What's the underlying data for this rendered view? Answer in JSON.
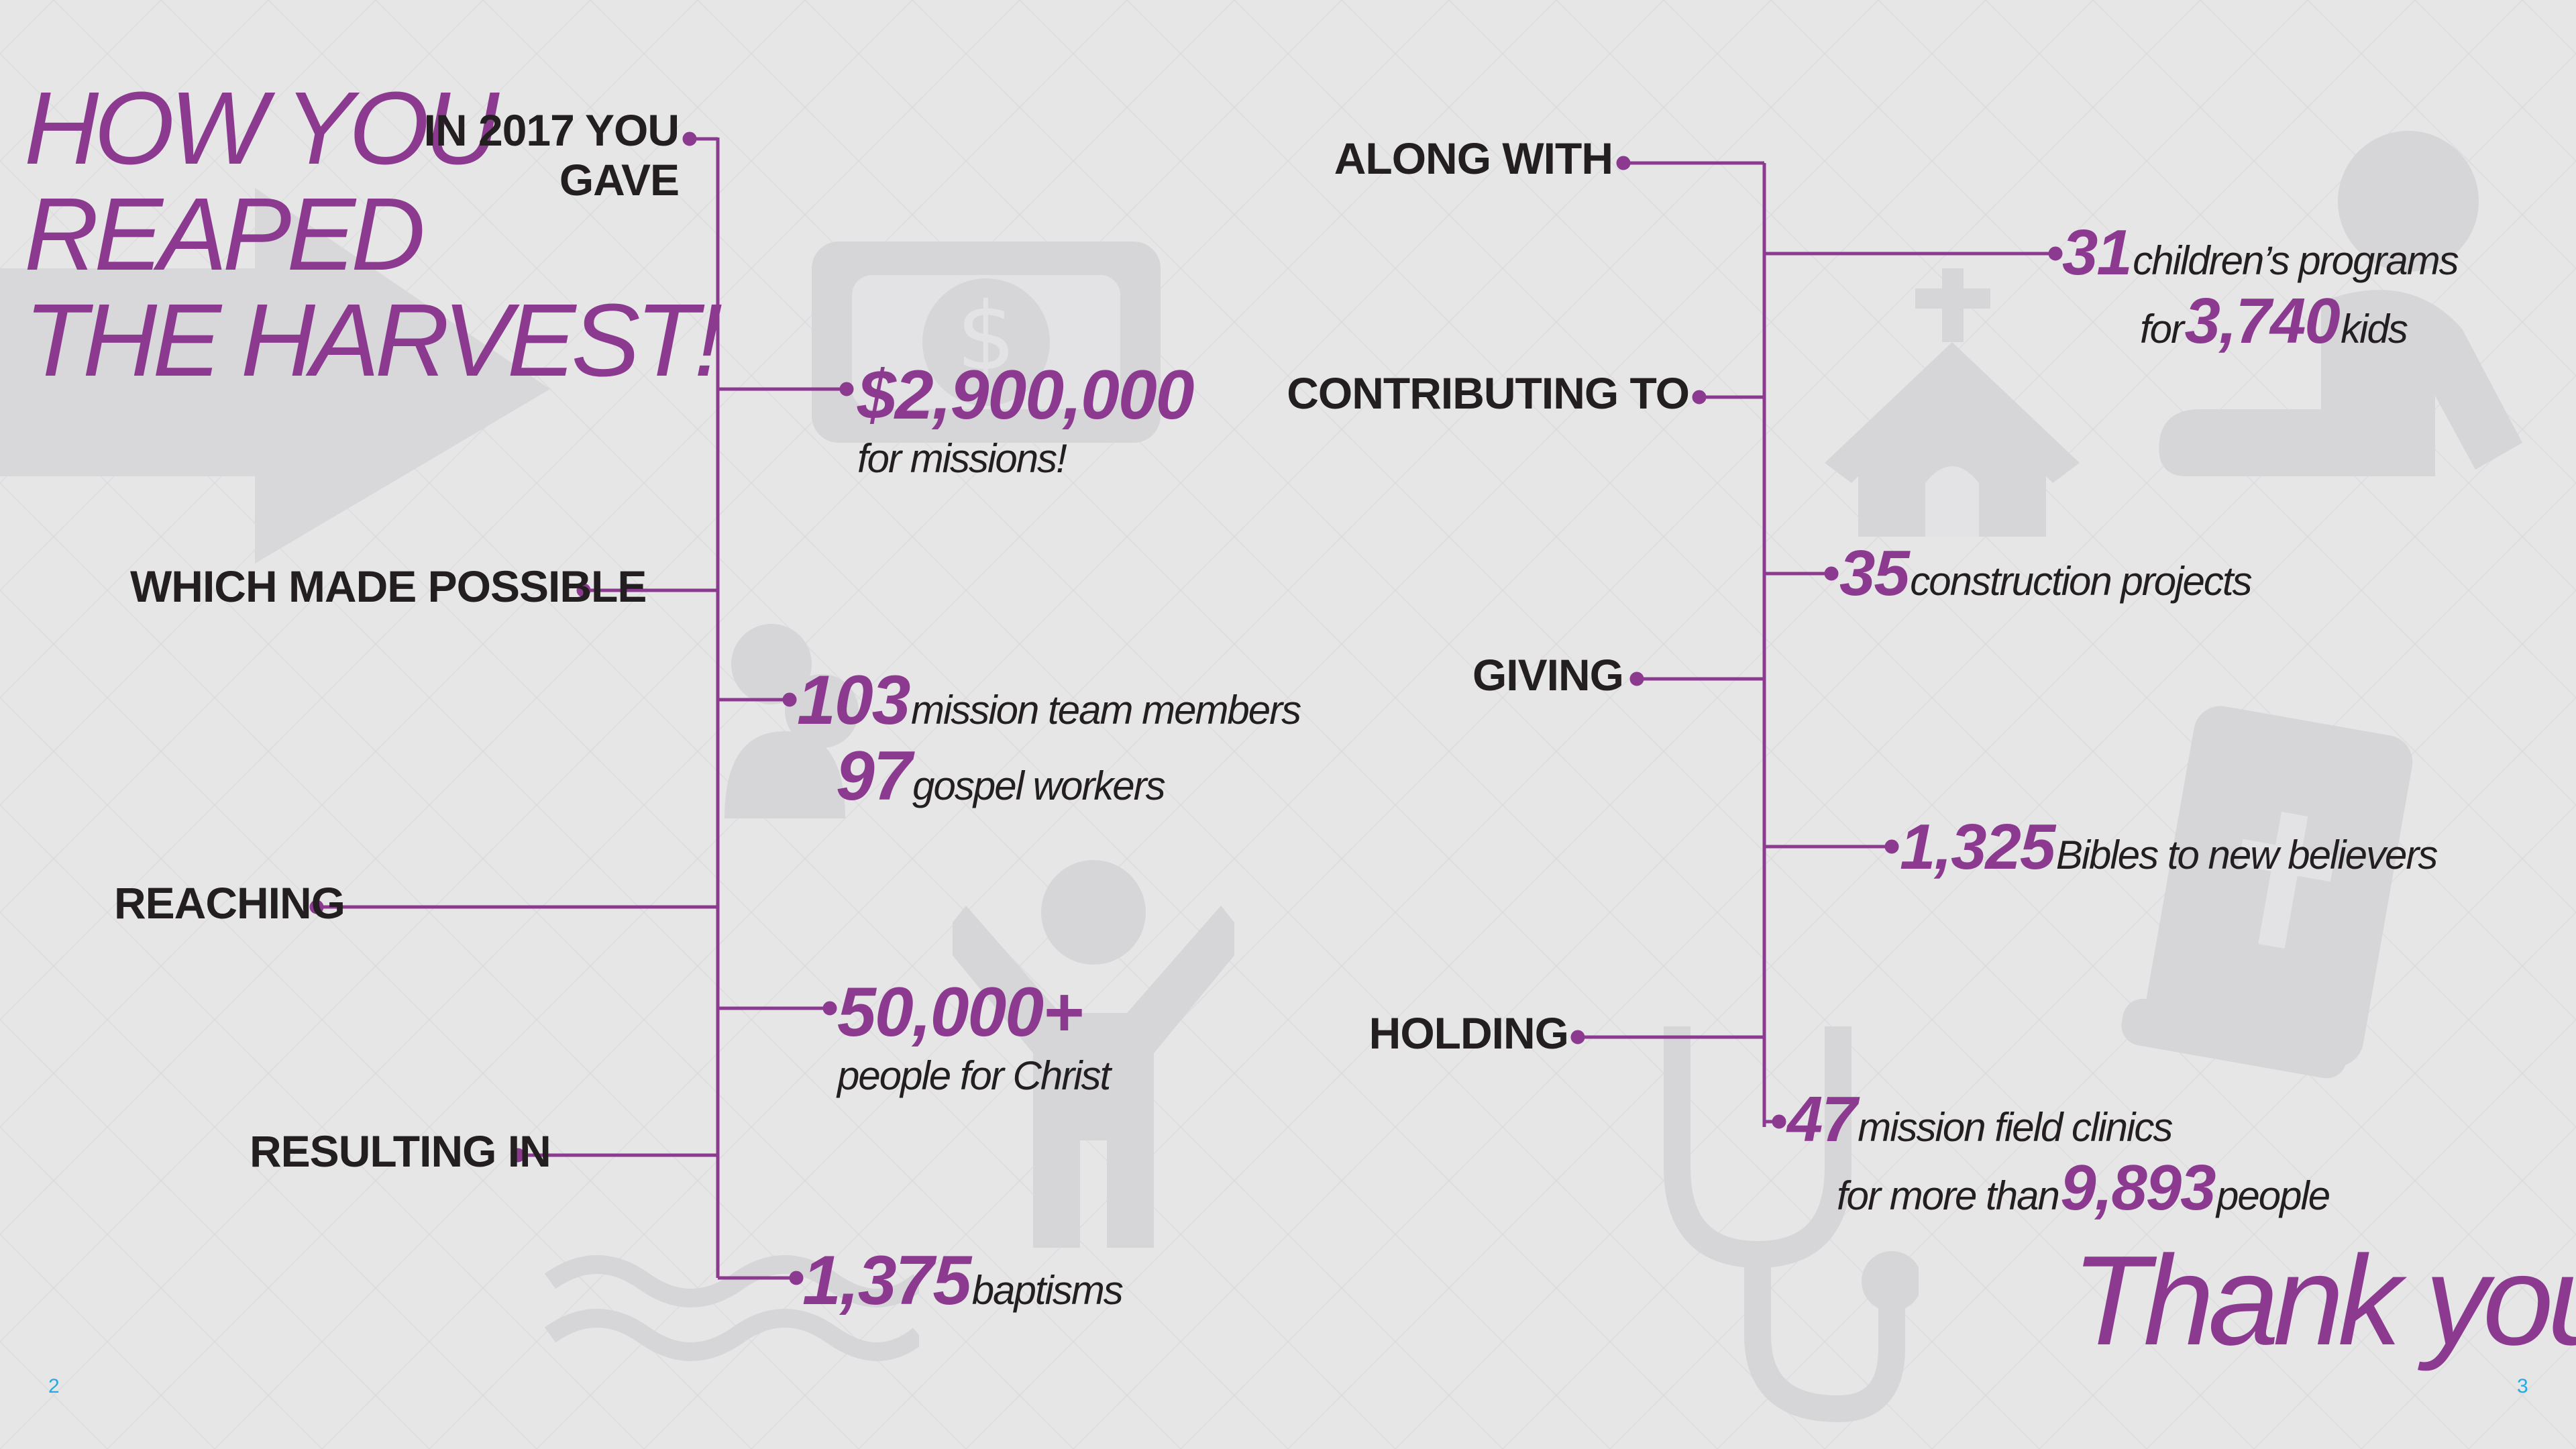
{
  "colors": {
    "accent": "#8b3a8f",
    "text": "#231f20",
    "background": "#e6e6e7",
    "page_number": "#29a8e0",
    "watermark": "#d5d5d7"
  },
  "left_page": {
    "headline": [
      "HOW YOU",
      "REAPED",
      "THE HARVEST!"
    ],
    "labels": {
      "gave_line1": "IN 2017 YOU",
      "gave_line2": "GAVE",
      "made_possible": "WHICH MADE POSSIBLE",
      "reaching": "REACHING",
      "resulting_in": "RESULTING IN"
    },
    "stats": {
      "missions_amount": "$2,900,000",
      "missions_text": "for missions!",
      "team_members_num": "103",
      "team_members_text": "mission team members",
      "gospel_workers_num": "97",
      "gospel_workers_text": "gospel workers",
      "people_num": "50,000+",
      "people_text": "people for Christ",
      "baptisms_num": "1,375",
      "baptisms_text": "baptisms"
    },
    "page_number": "2",
    "background_icons": [
      "arrow-icon",
      "money-icon",
      "people-icon",
      "person-icon",
      "water-icon"
    ]
  },
  "right_page": {
    "labels": {
      "along_with": "ALONG WITH",
      "contributing_to": "CONTRIBUTING TO",
      "giving": "GIVING",
      "holding": "HOLDING"
    },
    "stats": {
      "programs_num": "31",
      "programs_text": "children’s programs",
      "kids_prefix": "for",
      "kids_num": "3,740",
      "kids_text": "kids",
      "construction_num": "35",
      "construction_text": "construction projects",
      "bibles_num": "1,325",
      "bibles_text": "Bibles to new believers",
      "clinics_num": "47",
      "clinics_text": "mission field clinics",
      "clinic_people_prefix": "for more than",
      "clinic_people_num": "9,893",
      "clinic_people_text": "people"
    },
    "thank_you": "Thank you!",
    "page_number": "3",
    "background_icons": [
      "child-icon",
      "church-icon",
      "bible-icon",
      "stethoscope-icon"
    ]
  }
}
